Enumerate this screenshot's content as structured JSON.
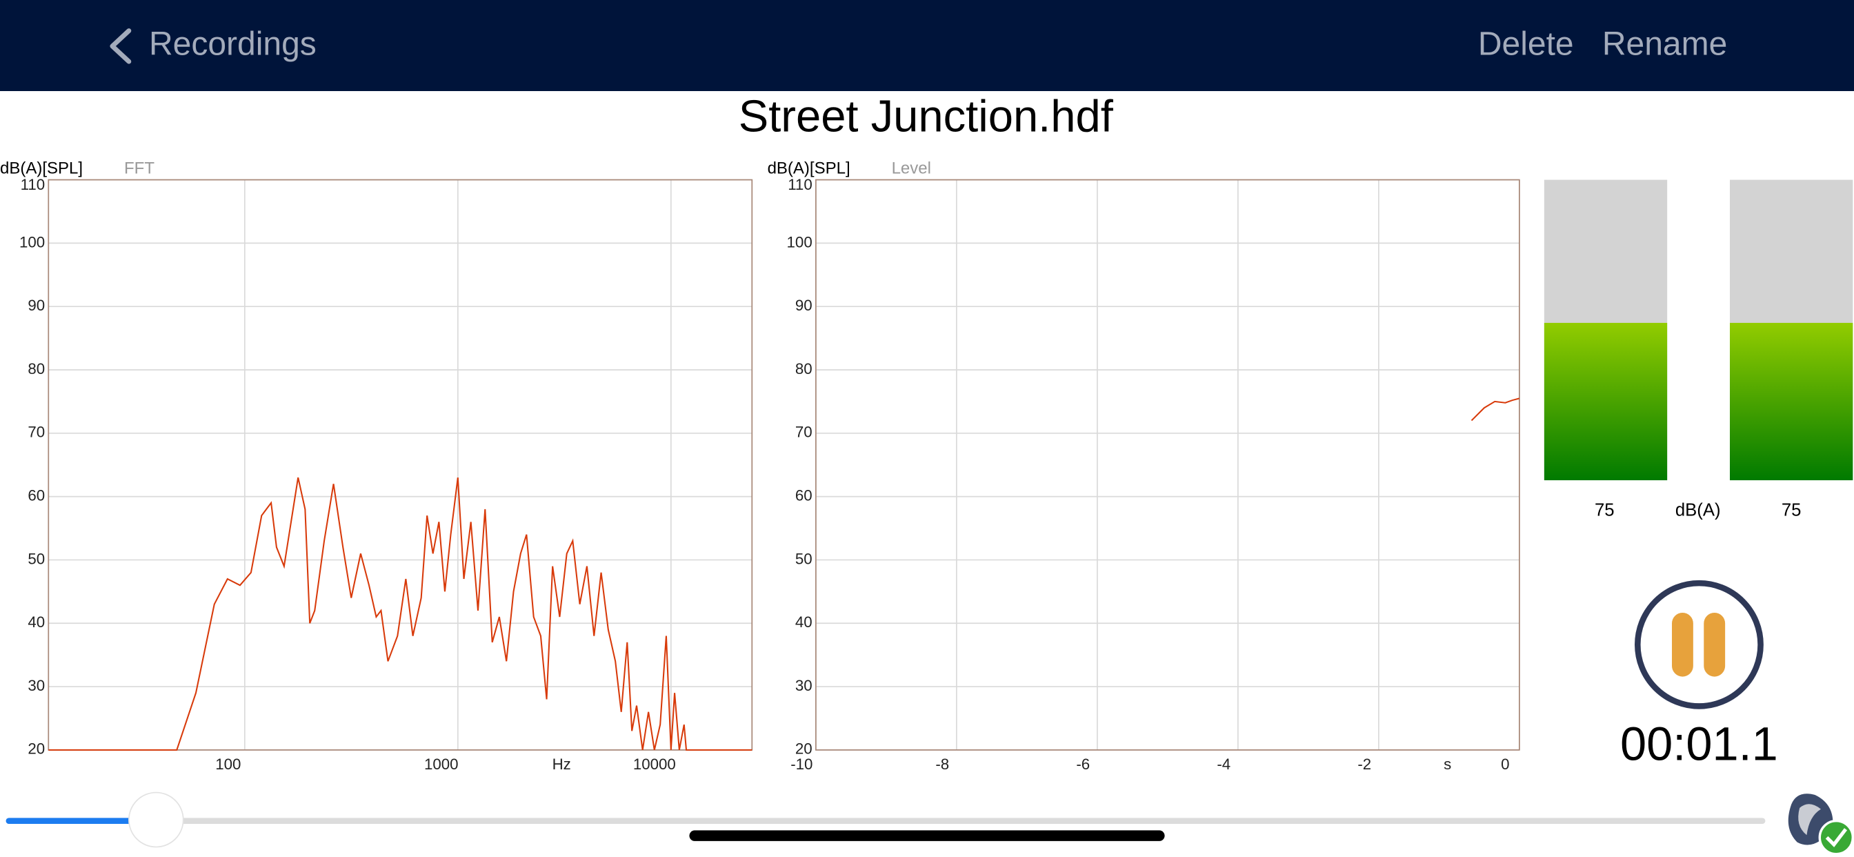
{
  "header": {
    "back": "Recordings",
    "actions": [
      "Delete",
      "Rename"
    ]
  },
  "title": "Street Junction.hdf",
  "chart_data": [
    {
      "type": "line",
      "y_label": "dB(A)[SPL]",
      "mode": "FFT",
      "x_unit": "Hz",
      "log_x": true,
      "grid": true,
      "x": [
        12,
        48,
        59,
        72,
        83,
        95,
        107,
        120,
        133,
        141,
        153,
        165,
        178,
        192,
        202,
        213,
        236,
        261,
        289,
        316,
        350,
        383,
        414,
        436,
        470,
        521,
        570,
        615,
        673,
        717,
        764,
        815,
        869,
        926,
        1000,
        1067,
        1151,
        1243,
        1342,
        1450,
        1565,
        1690,
        1825,
        1970,
        2100,
        2268,
        2448,
        2610,
        2783,
        3004,
        3244,
        3459,
        3734,
        4033,
        4355,
        4702,
        5077,
        5483,
        5843,
        6230,
        6556,
        6900,
        7360,
        7840,
        8360,
        8900,
        9500,
        10000,
        10400,
        10940,
        11520,
        11800,
        24000
      ],
      "series": [
        {
          "color": "#d83a0a",
          "values": [
            20,
            20,
            29,
            43,
            47,
            46,
            48,
            57,
            59,
            52,
            49,
            56,
            63,
            58,
            40,
            42,
            53,
            62,
            52,
            44,
            51,
            46,
            41,
            42,
            34,
            38,
            47,
            38,
            44,
            57,
            51,
            56,
            45,
            54,
            63,
            47,
            56,
            42,
            58,
            37,
            41,
            34,
            45,
            51,
            54,
            41,
            38,
            28,
            49,
            41,
            51,
            53,
            43,
            49,
            38,
            48,
            39,
            34,
            26,
            37,
            23,
            27,
            20,
            26,
            20,
            24,
            38,
            20,
            29,
            20,
            24,
            20,
            20
          ]
        }
      ],
      "xlim": [
        12,
        24000
      ],
      "xticks": [
        100,
        1000,
        10000
      ],
      "ylim": [
        20,
        110
      ],
      "yticks": [
        20,
        30,
        40,
        50,
        60,
        70,
        80,
        90,
        100,
        110
      ]
    },
    {
      "type": "line",
      "y_label": "dB(A)[SPL]",
      "mode": "Level",
      "x_unit": "s",
      "log_x": false,
      "grid": true,
      "x": [
        -0.68,
        -0.5,
        -0.35,
        -0.2,
        -0.1,
        0
      ],
      "series": [
        {
          "color": "#d83a0a",
          "values": [
            72,
            74,
            75,
            74.8,
            75.2,
            75.5
          ]
        }
      ],
      "xlim": [
        -10,
        0
      ],
      "xticks": [
        -10,
        -8,
        -6,
        -4,
        -2,
        0
      ],
      "ylim": [
        20,
        110
      ],
      "yticks": [
        20,
        30,
        40,
        50,
        60,
        70,
        80,
        90,
        100,
        110
      ]
    }
  ],
  "meters": {
    "values": [
      75,
      75
    ],
    "unit": "dB(A)",
    "lim": [
      20,
      125
    ]
  },
  "timer": "00:01.1"
}
